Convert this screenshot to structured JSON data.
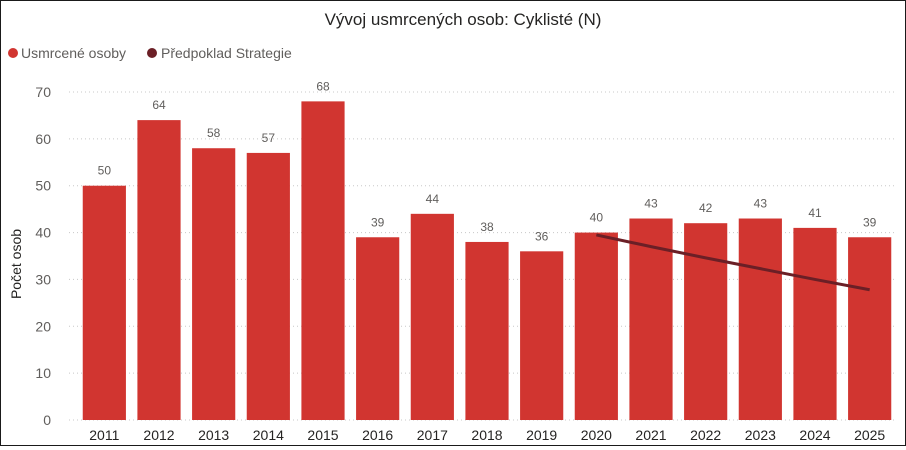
{
  "chart_data": {
    "type": "bar",
    "title": "Vývoj usmrcených osob: Cyklisté (N)",
    "xlabel": "",
    "ylabel": "Počet osob",
    "ylim": [
      0,
      70
    ],
    "yticks": [
      0,
      10,
      20,
      30,
      40,
      50,
      60,
      70
    ],
    "grid": true,
    "legend_position": "top-left",
    "categories": [
      "2011",
      "2012",
      "2013",
      "2014",
      "2015",
      "2016",
      "2017",
      "2018",
      "2019",
      "2020",
      "2021",
      "2022",
      "2023",
      "2024",
      "2025"
    ],
    "series": [
      {
        "name": "Usmrcené osoby",
        "type": "bar",
        "color": "#d13530",
        "values": [
          50,
          64,
          58,
          57,
          68,
          39,
          44,
          38,
          36,
          40,
          43,
          42,
          43,
          41,
          39
        ],
        "data_labels": [
          "50",
          "64",
          "58",
          "57",
          "68",
          "39",
          "44",
          "38",
          "36",
          "40",
          "43",
          "42",
          "43",
          "41",
          "39"
        ]
      },
      {
        "name": "Předpoklad Strategie",
        "type": "line",
        "color": "#6b1f26",
        "x": [
          "2020",
          "2021",
          "2022",
          "2023",
          "2024",
          "2025"
        ],
        "values": [
          39.5,
          37.0,
          34.6,
          32.3,
          30.0,
          27.8
        ]
      }
    ]
  }
}
